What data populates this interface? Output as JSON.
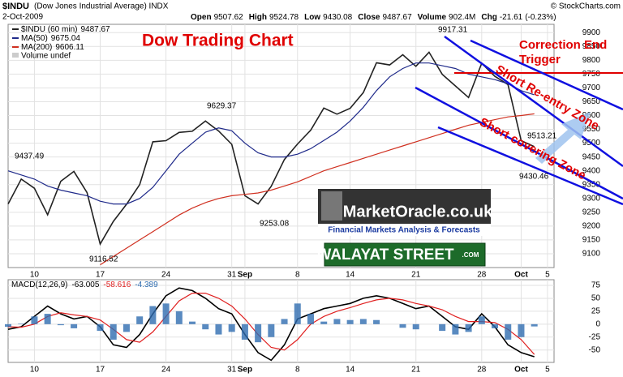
{
  "chart_data": [
    {
      "type": "line",
      "symbol": "$INDU",
      "description": "(Dow Jones Industrial Average) INDX",
      "source": "© StockCharts.com",
      "date": "2-Oct-2009",
      "quote": [
        {
          "label": "Open",
          "value": 9507.62
        },
        {
          "label": "High",
          "value": 9524.78
        },
        {
          "label": "Low",
          "value": 9430.08
        },
        {
          "label": "Close",
          "value": 9487.67
        },
        {
          "label": "Volume",
          "value": 902400000,
          "value_label": "902.4M"
        },
        {
          "label": "Chg",
          "value": -21.61,
          "change_label": "(-0.23%)"
        }
      ],
      "title": "Dow Trading Chart",
      "volume_label": "Volume undef",
      "annotations": [
        "9917.31",
        "9629.37",
        "9437.49",
        "9116.52",
        "9253.08",
        "9513.21",
        "9430.46",
        "Correction End",
        "Trigger",
        "Short Re-entry Zone",
        "Short covering Zone"
      ],
      "logo": {
        "name": "MarketOracle.co.uk",
        "tagline": "Financial Markets Analysis & Forecasts",
        "banner": "WALAYAT STREET",
        "banner_suffix": ".COM"
      },
      "x": [
        -2,
        -1,
        0,
        1,
        2,
        3,
        4,
        5,
        6,
        7,
        8,
        9,
        10,
        11,
        12,
        13,
        14,
        15,
        16,
        17,
        18,
        19,
        20,
        21,
        22,
        23,
        24,
        25,
        26,
        27,
        28,
        29,
        30,
        31,
        32,
        33,
        34,
        35,
        36,
        37,
        38
      ],
      "xlim": [
        -2,
        39.5
      ],
      "xticks": [
        {
          "value": 0,
          "label": "10"
        },
        {
          "value": 5,
          "label": "17"
        },
        {
          "value": 10,
          "label": "24"
        },
        {
          "value": 15,
          "label": "31"
        },
        {
          "value": 16,
          "label": "Sep"
        },
        {
          "value": 20,
          "label": "8"
        },
        {
          "value": 24,
          "label": "14"
        },
        {
          "value": 29,
          "label": "21"
        },
        {
          "value": 34,
          "label": "28"
        },
        {
          "value": 37,
          "label": "Oct"
        },
        {
          "value": 39,
          "label": "5"
        }
      ],
      "ylim": [
        9050,
        9930
      ],
      "yticks": [
        9100,
        9150,
        9200,
        9250,
        9300,
        9350,
        9400,
        9450,
        9500,
        9550,
        9600,
        9650,
        9700,
        9750,
        9800,
        9850,
        9900
      ],
      "grid": true,
      "series": [
        {
          "name": "$INDU (60 min)",
          "color": "#222222",
          "values": [
            9280,
            9370,
            9337,
            9241,
            9362,
            9398,
            9321,
            9135,
            9217,
            9279,
            9350,
            9505,
            9509,
            9539,
            9543,
            9580,
            9544,
            9496,
            9310,
            9280,
            9344,
            9441,
            9497,
            9547,
            9627,
            9605,
            9626,
            9683,
            9791,
            9783,
            9820,
            9778,
            9829,
            9749,
            9707,
            9665,
            9789,
            9742,
            9712,
            9509,
            9487.67
          ]
        },
        {
          "name": "MA(50)",
          "color": "#1f2a8a",
          "values": [
            9400,
            9385,
            9370,
            9345,
            9330,
            9320,
            9310,
            9290,
            9280,
            9280,
            9300,
            9340,
            9400,
            9460,
            9500,
            9540,
            9555,
            9545,
            9500,
            9465,
            9450,
            9450,
            9460,
            9480,
            9510,
            9540,
            9580,
            9630,
            9690,
            9740,
            9770,
            9790,
            9790,
            9780,
            9770,
            9750,
            9740,
            9730,
            9715,
            9690,
            9675.04
          ]
        },
        {
          "name": "MA(200)",
          "color": "#d03020",
          "values": [
            null,
            null,
            null,
            null,
            null,
            null,
            null,
            9060,
            9090,
            9120,
            9150,
            9180,
            9210,
            9240,
            9265,
            9285,
            9300,
            9310,
            9315,
            9320,
            9330,
            9345,
            9360,
            9380,
            9400,
            9415,
            9430,
            9445,
            9460,
            9475,
            9490,
            9505,
            9520,
            9535,
            9550,
            9565,
            9575,
            9585,
            9595,
            9600,
            9606.11
          ]
        }
      ]
    },
    {
      "type": "line",
      "x": [
        -2,
        -1,
        0,
        1,
        2,
        3,
        4,
        5,
        6,
        7,
        8,
        9,
        10,
        11,
        12,
        13,
        14,
        15,
        16,
        17,
        18,
        19,
        20,
        21,
        22,
        23,
        24,
        25,
        26,
        27,
        28,
        29,
        30,
        31,
        32,
        33,
        34,
        35,
        36,
        37,
        38
      ],
      "xlim": [
        -2,
        39.5
      ],
      "ylim": [
        -74,
        86
      ],
      "yticks": [
        75,
        50,
        25,
        0,
        -25,
        -50
      ],
      "grid": true,
      "series": [
        {
          "name": "MACD(12,26,9)",
          "color": "#000000",
          "values": [
            -10,
            -5,
            15,
            35,
            20,
            10,
            15,
            -5,
            -40,
            -45,
            -20,
            20,
            55,
            70,
            65,
            50,
            30,
            20,
            -20,
            -55,
            -70,
            -40,
            10,
            20,
            30,
            35,
            40,
            50,
            55,
            50,
            40,
            30,
            35,
            15,
            -5,
            -10,
            20,
            -5,
            -40,
            -55,
            -63.005
          ]
        },
        {
          "color": "#e02020",
          "values": [
            -5,
            -6,
            0,
            15,
            22,
            18,
            15,
            8,
            -10,
            -30,
            -35,
            -15,
            15,
            45,
            60,
            60,
            50,
            35,
            10,
            -20,
            -45,
            -50,
            -30,
            0,
            15,
            25,
            32,
            40,
            47,
            50,
            47,
            40,
            35,
            28,
            15,
            5,
            5,
            3,
            -10,
            -30,
            -58.616
          ]
        },
        {
          "color": "#2f6db0",
          "type": "bar",
          "values": [
            -5,
            1,
            15,
            20,
            -2,
            -8,
            0,
            -13,
            -30,
            -15,
            15,
            35,
            40,
            25,
            5,
            -10,
            -20,
            -15,
            -30,
            -35,
            -25,
            10,
            40,
            20,
            5,
            10,
            8,
            10,
            8,
            0,
            -7,
            -10,
            0,
            -13,
            -20,
            -15,
            15,
            -8,
            -30,
            -25,
            -4.389
          ]
        }
      ]
    }
  ]
}
